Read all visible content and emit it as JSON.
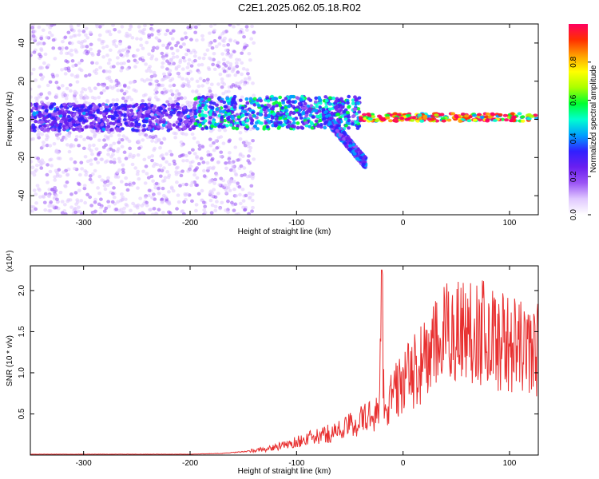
{
  "title": "C2E1.2025.062.05.18.R02",
  "colors": {
    "frame": "#000000",
    "snr_line": "#e83030",
    "colormap": [
      "#ffffff",
      "#e0c8ff",
      "#9b55f5",
      "#6a1ff0",
      "#3020ff",
      "#00a0ff",
      "#00ffd0",
      "#00ff30",
      "#aaff00",
      "#ffff00",
      "#ffa000",
      "#ff3000",
      "#ff0060"
    ]
  },
  "chart_data": [
    {
      "type": "heatmap",
      "title": "",
      "xlabel": "Height of straight line (km)",
      "ylabel": "Frequency (Hz)",
      "xlim": [
        -350,
        127
      ],
      "ylim": [
        -50,
        50
      ],
      "xticks": [
        -300,
        -200,
        -100,
        0,
        100
      ],
      "yticks": [
        -40,
        -20,
        0,
        20,
        40
      ],
      "grid": false,
      "colorbar": {
        "label": "Normalized spectral amplitude",
        "range": [
          0.0,
          1.0
        ],
        "ticks": [
          0.0,
          0.2,
          0.4,
          0.6,
          0.8
        ],
        "tick_labels": [
          "0.0",
          "0.2",
          "0.4",
          "0.6",
          "0.8"
        ]
      },
      "regions": [
        {
          "name": "noise-scatter",
          "x": [
            -350,
            -140
          ],
          "y": [
            -50,
            50
          ],
          "amplitude": 0.12
        },
        {
          "name": "band-core",
          "x": [
            -350,
            -195
          ],
          "y": [
            -6,
            8
          ],
          "amplitude": 0.3
        },
        {
          "name": "band-middle",
          "x": [
            -195,
            -40
          ],
          "y": [
            -5,
            12
          ],
          "amplitude": 0.45
        },
        {
          "name": "descending-branch",
          "x": [
            -75,
            -35
          ],
          "y": [
            -25,
            5
          ],
          "amplitude": 0.35
        },
        {
          "name": "narrow-tone",
          "x": [
            -40,
            127
          ],
          "y": [
            -1,
            3
          ],
          "amplitude": 0.95
        }
      ]
    },
    {
      "type": "line",
      "title": "",
      "xlabel": "Height of straight line (km)",
      "ylabel": "SNR (10 * v/v)",
      "y_multiplier_label": "(x10⁴)",
      "xlim": [
        -350,
        127
      ],
      "ylim": [
        0,
        2.3
      ],
      "xticks": [
        -300,
        -200,
        -100,
        0,
        100
      ],
      "yticks": [
        0.5,
        1.0,
        1.5,
        2.0
      ],
      "ytick_labels": [
        "0.5",
        "1.0",
        "1.5",
        "2.0"
      ],
      "grid": false,
      "series": [
        {
          "x": [
            -350,
            -300,
            -250,
            -200,
            -170,
            -150,
            -130,
            -110,
            -100,
            -90,
            -80,
            -70,
            -60,
            -50,
            -40,
            -30,
            -25,
            -22,
            -20,
            -18,
            -15,
            -10,
            -5,
            0,
            10,
            20,
            30,
            40,
            50,
            60,
            70,
            80,
            90,
            100,
            110,
            120,
            127
          ],
          "values": [
            0.01,
            0.01,
            0.01,
            0.01,
            0.02,
            0.04,
            0.07,
            0.12,
            0.16,
            0.2,
            0.22,
            0.26,
            0.3,
            0.36,
            0.42,
            0.48,
            0.52,
            0.55,
            2.2,
            0.6,
            0.6,
            0.75,
            0.8,
            0.9,
            1.0,
            1.15,
            1.3,
            1.45,
            1.55,
            1.5,
            1.55,
            1.45,
            1.4,
            1.35,
            1.3,
            1.25,
            1.3
          ]
        }
      ]
    }
  ]
}
